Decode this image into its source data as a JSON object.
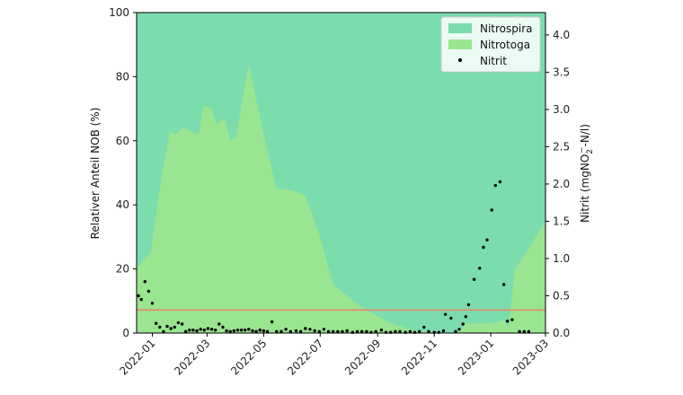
{
  "chart_data": {
    "type": "area",
    "ylabel_left": "Relativer Anteil NOB (%)",
    "ylabel_right": "Nitrit (mgNO",
    "ylabel_right_sub": "2",
    "ylabel_right_sup": "−",
    "ylabel_right_tail": "-N/l)",
    "xlim": [
      "2021-12-15",
      "2023-03-01"
    ],
    "ylim_left": [
      0,
      100
    ],
    "ylim_right": [
      0,
      4.3
    ],
    "x_ticks": [
      "2022-01",
      "2022-03",
      "2022-05",
      "2022-07",
      "2022-09",
      "2022-11",
      "2023-01",
      "2023-03"
    ],
    "x_tick_dates": [
      "2022-01-01",
      "2022-03-01",
      "2022-05-01",
      "2022-07-01",
      "2022-09-01",
      "2022-11-01",
      "2023-01-01",
      "2023-03-01"
    ],
    "y_ticks_left": [
      "0",
      "20",
      "40",
      "60",
      "80",
      "100"
    ],
    "y_ticks_left_values": [
      0,
      20,
      40,
      60,
      80,
      100
    ],
    "y_ticks_right": [
      "0.0",
      "0.5",
      "1.0",
      "1.5",
      "2.0",
      "2.5",
      "3.0",
      "3.5",
      "4.0"
    ],
    "y_ticks_right_values": [
      0,
      0.5,
      1.0,
      1.5,
      2.0,
      2.5,
      3.0,
      3.5,
      4.0
    ],
    "legend_position": "top-right",
    "series": [
      {
        "name": "Nitrospira",
        "kind": "area",
        "color": "#7bdcae",
        "top": 100
      },
      {
        "name": "Nitrotoga",
        "kind": "area",
        "color": "#9ae590",
        "points": [
          [
            "2021-12-15",
            20
          ],
          [
            "2021-12-20",
            22
          ],
          [
            "2021-12-30",
            25
          ],
          [
            "2022-01-10",
            47
          ],
          [
            "2022-01-20",
            63
          ],
          [
            "2022-01-26",
            62
          ],
          [
            "2022-02-03",
            64
          ],
          [
            "2022-02-20",
            62
          ],
          [
            "2022-02-25",
            71
          ],
          [
            "2022-03-06",
            70
          ],
          [
            "2022-03-11",
            65
          ],
          [
            "2022-03-20",
            67
          ],
          [
            "2022-03-26",
            60
          ],
          [
            "2022-04-01",
            61
          ],
          [
            "2022-04-15",
            84
          ],
          [
            "2022-05-01",
            62
          ],
          [
            "2022-05-15",
            45
          ],
          [
            "2022-06-01",
            44.5
          ],
          [
            "2022-06-15",
            43
          ],
          [
            "2022-07-01",
            30
          ],
          [
            "2022-07-15",
            15
          ],
          [
            "2022-08-15",
            8
          ],
          [
            "2022-09-15",
            3
          ],
          [
            "2022-10-15",
            0.5
          ],
          [
            "2022-11-15",
            0
          ],
          [
            "2022-11-26",
            0
          ],
          [
            "2022-12-05",
            3
          ],
          [
            "2022-12-25",
            3
          ],
          [
            "2023-01-01",
            3
          ],
          [
            "2023-01-15",
            4
          ],
          [
            "2023-01-20",
            2
          ],
          [
            "2023-01-27",
            20
          ],
          [
            "2023-02-10",
            26
          ],
          [
            "2023-03-01",
            35
          ]
        ]
      },
      {
        "name": "Nitrit",
        "kind": "scatter",
        "color": "#000000",
        "points": [
          [
            "2021-12-17",
            0.5
          ],
          [
            "2021-12-20",
            0.45
          ],
          [
            "2021-12-24",
            0.69
          ],
          [
            "2021-12-28",
            0.56
          ],
          [
            "2022-01-01",
            0.4
          ],
          [
            "2022-01-05",
            0.13
          ],
          [
            "2022-01-09",
            0.08
          ],
          [
            "2022-01-13",
            0.02
          ],
          [
            "2022-01-17",
            0.09
          ],
          [
            "2022-01-21",
            0.06
          ],
          [
            "2022-01-25",
            0.08
          ],
          [
            "2022-01-29",
            0.14
          ],
          [
            "2022-02-02",
            0.12
          ],
          [
            "2022-02-06",
            0.02
          ],
          [
            "2022-02-10",
            0.04
          ],
          [
            "2022-02-14",
            0.04
          ],
          [
            "2022-02-18",
            0.03
          ],
          [
            "2022-02-22",
            0.05
          ],
          [
            "2022-02-26",
            0.04
          ],
          [
            "2022-03-02",
            0.06
          ],
          [
            "2022-03-06",
            0.05
          ],
          [
            "2022-03-10",
            0.04
          ],
          [
            "2022-03-14",
            0.12
          ],
          [
            "2022-03-18",
            0.08
          ],
          [
            "2022-03-22",
            0.03
          ],
          [
            "2022-03-26",
            0.02
          ],
          [
            "2022-03-30",
            0.03
          ],
          [
            "2022-04-03",
            0.04
          ],
          [
            "2022-04-07",
            0.04
          ],
          [
            "2022-04-11",
            0.04
          ],
          [
            "2022-04-15",
            0.05
          ],
          [
            "2022-04-19",
            0.03
          ],
          [
            "2022-04-23",
            0.02
          ],
          [
            "2022-04-27",
            0.04
          ],
          [
            "2022-05-01",
            0.03
          ],
          [
            "2022-05-05",
            0.02
          ],
          [
            "2022-05-10",
            0.15
          ],
          [
            "2022-05-15",
            0.02
          ],
          [
            "2022-05-20",
            0.02
          ],
          [
            "2022-05-25",
            0.05
          ],
          [
            "2022-05-30",
            0.02
          ],
          [
            "2022-06-05",
            0.03
          ],
          [
            "2022-06-10",
            0.02
          ],
          [
            "2022-06-15",
            0.06
          ],
          [
            "2022-06-20",
            0.05
          ],
          [
            "2022-06-25",
            0.03
          ],
          [
            "2022-06-30",
            0.02
          ],
          [
            "2022-07-05",
            0.05
          ],
          [
            "2022-07-10",
            0.02
          ],
          [
            "2022-07-15",
            0.02
          ],
          [
            "2022-07-20",
            0.02
          ],
          [
            "2022-07-25",
            0.02
          ],
          [
            "2022-07-30",
            0.03
          ],
          [
            "2022-08-05",
            0.01
          ],
          [
            "2022-08-10",
            0.02
          ],
          [
            "2022-08-15",
            0.02
          ],
          [
            "2022-08-20",
            0.02
          ],
          [
            "2022-08-25",
            0.01
          ],
          [
            "2022-08-30",
            0.02
          ],
          [
            "2022-09-05",
            0.04
          ],
          [
            "2022-09-10",
            0.01
          ],
          [
            "2022-09-15",
            0.01
          ],
          [
            "2022-09-20",
            0.02
          ],
          [
            "2022-09-25",
            0.02
          ],
          [
            "2022-10-01",
            0.01
          ],
          [
            "2022-10-06",
            0.02
          ],
          [
            "2022-10-11",
            0.01
          ],
          [
            "2022-10-16",
            0.02
          ],
          [
            "2022-10-21",
            0.08
          ],
          [
            "2022-10-26",
            0.02
          ],
          [
            "2022-11-01",
            0.01
          ],
          [
            "2022-11-06",
            0.01
          ],
          [
            "2022-11-11",
            0.03
          ],
          [
            "2022-11-13",
            0.25
          ],
          [
            "2022-11-19",
            0.2
          ],
          [
            "2022-11-24",
            0.02
          ],
          [
            "2022-11-28",
            0.05
          ],
          [
            "2022-12-02",
            0.12
          ],
          [
            "2022-12-05",
            0.22
          ],
          [
            "2022-12-08",
            0.38
          ],
          [
            "2022-12-14",
            0.72
          ],
          [
            "2022-12-20",
            0.87
          ],
          [
            "2022-12-24",
            1.15
          ],
          [
            "2022-12-28",
            1.25
          ],
          [
            "2023-01-02",
            1.65
          ],
          [
            "2023-01-06",
            1.98
          ],
          [
            "2023-01-11",
            2.03
          ],
          [
            "2023-01-15",
            0.65
          ],
          [
            "2023-01-19",
            0.16
          ],
          [
            "2023-01-24",
            0.18
          ],
          [
            "2023-02-01",
            0.02
          ],
          [
            "2023-02-06",
            0.02
          ],
          [
            "2023-02-11",
            0.02
          ]
        ]
      }
    ],
    "threshold": {
      "kind": "hline",
      "axis": "right",
      "value": 0.31,
      "color": "#e6866a"
    }
  }
}
